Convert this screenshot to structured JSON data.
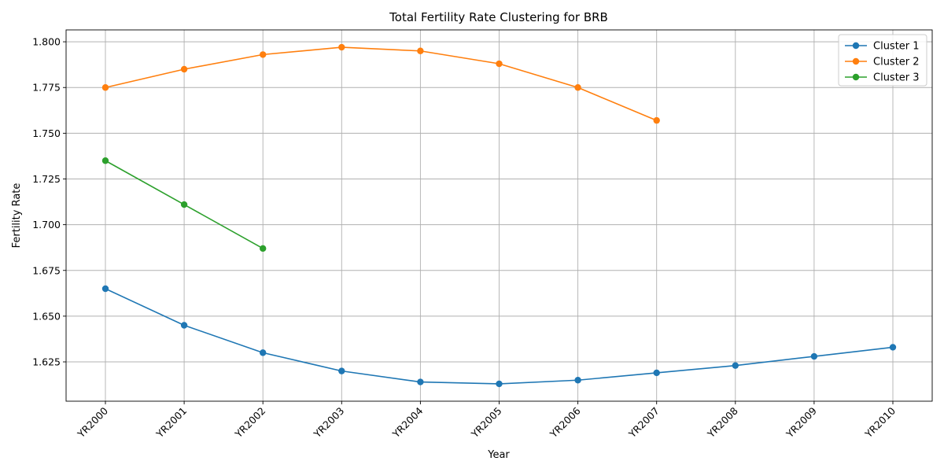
{
  "chart_data": {
    "type": "line",
    "title": "Total Fertility Rate Clustering for BRB",
    "xlabel": "Year",
    "ylabel": "Fertility Rate",
    "categories": [
      "YR2000",
      "YR2001",
      "YR2002",
      "YR2003",
      "YR2004",
      "YR2005",
      "YR2006",
      "YR2007",
      "YR2008",
      "YR2009",
      "YR2010"
    ],
    "ylim": [
      1.6035,
      1.8065
    ],
    "yticks": [
      1.625,
      1.65,
      1.675,
      1.7,
      1.725,
      1.75,
      1.775,
      1.8
    ],
    "ytick_labels": [
      "1.625",
      "1.650",
      "1.675",
      "1.700",
      "1.725",
      "1.750",
      "1.775",
      "1.800"
    ],
    "grid": true,
    "legend_position": "top-right",
    "series": [
      {
        "name": "Cluster 1",
        "color": "#1f77b4",
        "values": [
          1.665,
          1.645,
          1.63,
          1.62,
          1.614,
          1.613,
          1.615,
          1.619,
          1.623,
          1.628,
          1.633
        ]
      },
      {
        "name": "Cluster 2",
        "color": "#ff7f0e",
        "values": [
          1.775,
          1.785,
          1.793,
          1.797,
          1.795,
          1.788,
          1.775,
          1.757,
          null,
          null,
          null
        ]
      },
      {
        "name": "Cluster 3",
        "color": "#2ca02c",
        "values": [
          1.735,
          1.711,
          1.687,
          null,
          null,
          null,
          null,
          null,
          null,
          null,
          null
        ]
      }
    ]
  }
}
